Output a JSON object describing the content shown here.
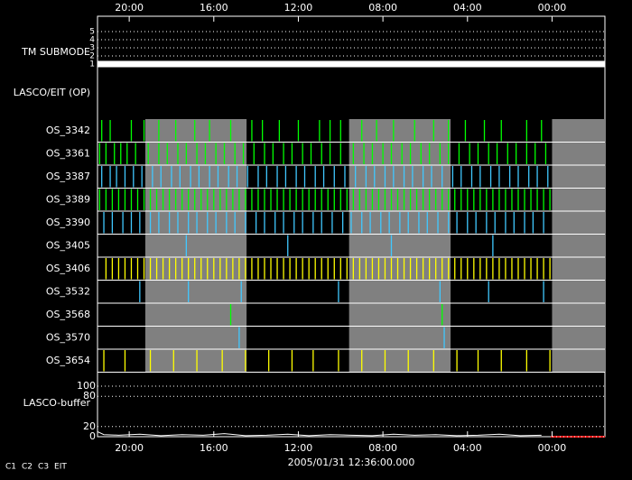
{
  "chart_data": {
    "type": "timeline",
    "xlim": [
      0,
      24
    ],
    "xticks": [
      {
        "value": 1.5,
        "label": "20:00"
      },
      {
        "value": 5.5,
        "label": "16:00"
      },
      {
        "value": 9.5,
        "label": "12:00"
      },
      {
        "value": 13.5,
        "label": "08:00"
      },
      {
        "value": 17.5,
        "label": "04:00"
      },
      {
        "value": 21.5,
        "label": "00:00"
      }
    ],
    "time_label": "2005/01/31 12:36:00.000",
    "shaded": [
      [
        2.26,
        7.05
      ],
      [
        11.9,
        16.7
      ],
      [
        21.5,
        24
      ]
    ],
    "submode": {
      "label": "TM SUBMODE",
      "ylim": [
        0.5,
        5.5
      ],
      "yticks": [
        1,
        2,
        3,
        4,
        5
      ],
      "x": [
        0,
        24
      ],
      "values": [
        1,
        1
      ]
    },
    "op_label": "LASCO/EIT (OP)",
    "rows": [
      {
        "name": "OS_3342",
        "color": "#00ff00",
        "x": [
          0.2,
          0.6,
          1.6,
          2.2,
          2.9,
          3.7,
          4.6,
          5.3,
          6.3,
          7.3,
          7.8,
          8.6,
          9.5,
          10.5,
          11.0,
          11.5,
          12.5,
          13.2,
          14.0,
          15.0,
          15.9,
          16.6,
          17.4,
          18.3,
          19.1,
          20.3,
          21.0
        ]
      },
      {
        "name": "OS_3361",
        "color": "#00ff00",
        "x": [
          0.1,
          0.4,
          0.8,
          1.1,
          1.4,
          1.8,
          2.4,
          2.9,
          3.3,
          3.8,
          4.2,
          4.7,
          5.1,
          5.6,
          6.0,
          6.5,
          6.9,
          7.4,
          7.9,
          8.3,
          8.8,
          9.2,
          9.7,
          10.1,
          10.6,
          11.0,
          11.5,
          12.1,
          12.6,
          13.0,
          13.5,
          13.9,
          14.4,
          14.8,
          15.3,
          15.7,
          16.2,
          16.6,
          17.1,
          17.6,
          18.0,
          18.5,
          18.9,
          19.4,
          19.8,
          20.3,
          20.7,
          21.2
        ]
      },
      {
        "name": "OS_3387",
        "color": "#40c8ff",
        "x": [
          0.2,
          0.6,
          0.9,
          1.3,
          1.7,
          2.1,
          2.6,
          3.0,
          3.5,
          3.9,
          4.4,
          4.8,
          5.3,
          5.7,
          6.2,
          6.6,
          7.1,
          7.6,
          8.0,
          8.5,
          8.9,
          9.4,
          9.8,
          10.3,
          10.7,
          11.2,
          11.7,
          12.2,
          12.7,
          13.1,
          13.6,
          14.0,
          14.5,
          14.9,
          15.4,
          15.8,
          16.3,
          16.8,
          17.2,
          17.7,
          18.1,
          18.6,
          19.0,
          19.5,
          19.9,
          20.4,
          20.8,
          21.3
        ]
      },
      {
        "name": "OS_3389",
        "color": "#00ff00",
        "x": [
          0.1,
          0.4,
          0.7,
          1.0,
          1.3,
          1.6,
          1.9,
          2.2,
          2.5,
          2.8,
          3.1,
          3.4,
          3.7,
          4.0,
          4.3,
          4.6,
          4.9,
          5.2,
          5.5,
          5.8,
          6.1,
          6.4,
          6.7,
          7.0,
          7.3,
          7.6,
          7.9,
          8.2,
          8.5,
          8.8,
          9.1,
          9.4,
          9.7,
          10.0,
          10.3,
          10.6,
          10.9,
          11.2,
          11.5,
          11.8,
          12.1,
          12.4,
          12.7,
          13.0,
          13.3,
          13.6,
          13.9,
          14.2,
          14.5,
          14.8,
          15.1,
          15.4,
          15.7,
          16.0,
          16.3,
          16.6,
          16.9,
          17.2,
          17.5,
          17.8,
          18.1,
          18.4,
          18.7,
          19.0,
          19.3,
          19.6,
          19.9,
          20.2,
          20.5,
          20.8,
          21.1,
          21.4
        ]
      },
      {
        "name": "OS_3390",
        "color": "#40c8ff",
        "x": [
          0.3,
          0.7,
          1.2,
          1.6,
          2.0,
          2.5,
          2.9,
          3.4,
          3.8,
          4.3,
          4.7,
          5.2,
          5.6,
          6.1,
          6.5,
          7.0,
          7.5,
          7.9,
          8.4,
          8.8,
          9.3,
          9.7,
          10.2,
          10.6,
          11.1,
          11.6,
          12.0,
          12.5,
          12.9,
          13.4,
          13.8,
          14.3,
          14.7,
          15.2,
          15.6,
          16.1,
          16.6,
          17.0,
          17.5,
          17.9,
          18.4,
          18.8,
          19.3,
          19.7,
          20.2,
          20.6,
          21.1
        ]
      },
      {
        "name": "OS_3405",
        "color": "#40c8ff",
        "x": [
          4.2,
          9.0,
          13.9,
          18.7
        ]
      },
      {
        "name": "OS_3406",
        "color": "#ffff00",
        "x": [
          0.4,
          0.7,
          1.0,
          1.3,
          1.6,
          1.9,
          2.2,
          2.5,
          2.8,
          3.1,
          3.4,
          3.7,
          4.0,
          4.3,
          4.6,
          4.9,
          5.2,
          5.5,
          5.8,
          6.1,
          6.4,
          6.7,
          7.0,
          7.3,
          7.6,
          7.9,
          8.2,
          8.5,
          8.8,
          9.1,
          9.4,
          9.7,
          10.0,
          10.3,
          10.6,
          10.9,
          11.2,
          11.5,
          11.8,
          12.1,
          12.4,
          12.7,
          13.0,
          13.3,
          13.6,
          13.9,
          14.2,
          14.5,
          14.8,
          15.1,
          15.4,
          15.7,
          16.0,
          16.3,
          16.6,
          16.9,
          17.2,
          17.5,
          17.8,
          18.1,
          18.4,
          18.7,
          19.0,
          19.3,
          19.6,
          19.9,
          20.2,
          20.5,
          20.8,
          21.1,
          21.4
        ]
      },
      {
        "name": "OS_3532",
        "color": "#40c8ff",
        "x": [
          2.0,
          4.3,
          6.8,
          11.4,
          16.2,
          18.5,
          21.1
        ]
      },
      {
        "name": "OS_3568",
        "color": "#00ff00",
        "x": [
          6.3,
          16.3
        ]
      },
      {
        "name": "OS_3570",
        "color": "#40c8ff",
        "x": [
          6.7,
          16.4
        ]
      },
      {
        "name": "OS_3654",
        "color": "#ffff00",
        "x": [
          0.3,
          1.3,
          2.5,
          3.6,
          4.7,
          5.9,
          7.0,
          8.1,
          9.2,
          10.2,
          11.4,
          12.5,
          13.6,
          14.7,
          15.9,
          17.0,
          18.0,
          19.1,
          20.3,
          21.4
        ]
      }
    ],
    "buffer": {
      "label": "LASCO-buffer",
      "ylim": [
        0,
        100
      ],
      "yticks": [
        0,
        20,
        80,
        100
      ],
      "x": [
        0,
        0.3,
        1,
        2,
        3,
        4,
        5,
        6,
        7,
        8,
        9,
        10,
        11,
        12,
        13,
        14,
        15,
        16,
        17,
        18,
        19,
        20,
        21
      ],
      "values": [
        10,
        4,
        3,
        5,
        2,
        4,
        3,
        6,
        2,
        3,
        5,
        2,
        4,
        3,
        2,
        5,
        3,
        4,
        2,
        3,
        5,
        2,
        3
      ]
    },
    "legend": [
      {
        "name": "C1",
        "color": "#ff2020"
      },
      {
        "name": "C2",
        "color": "#00ff00"
      },
      {
        "name": "C3",
        "color": "#ffffff"
      },
      {
        "name": "EIT",
        "color": "#ffffff"
      }
    ]
  }
}
